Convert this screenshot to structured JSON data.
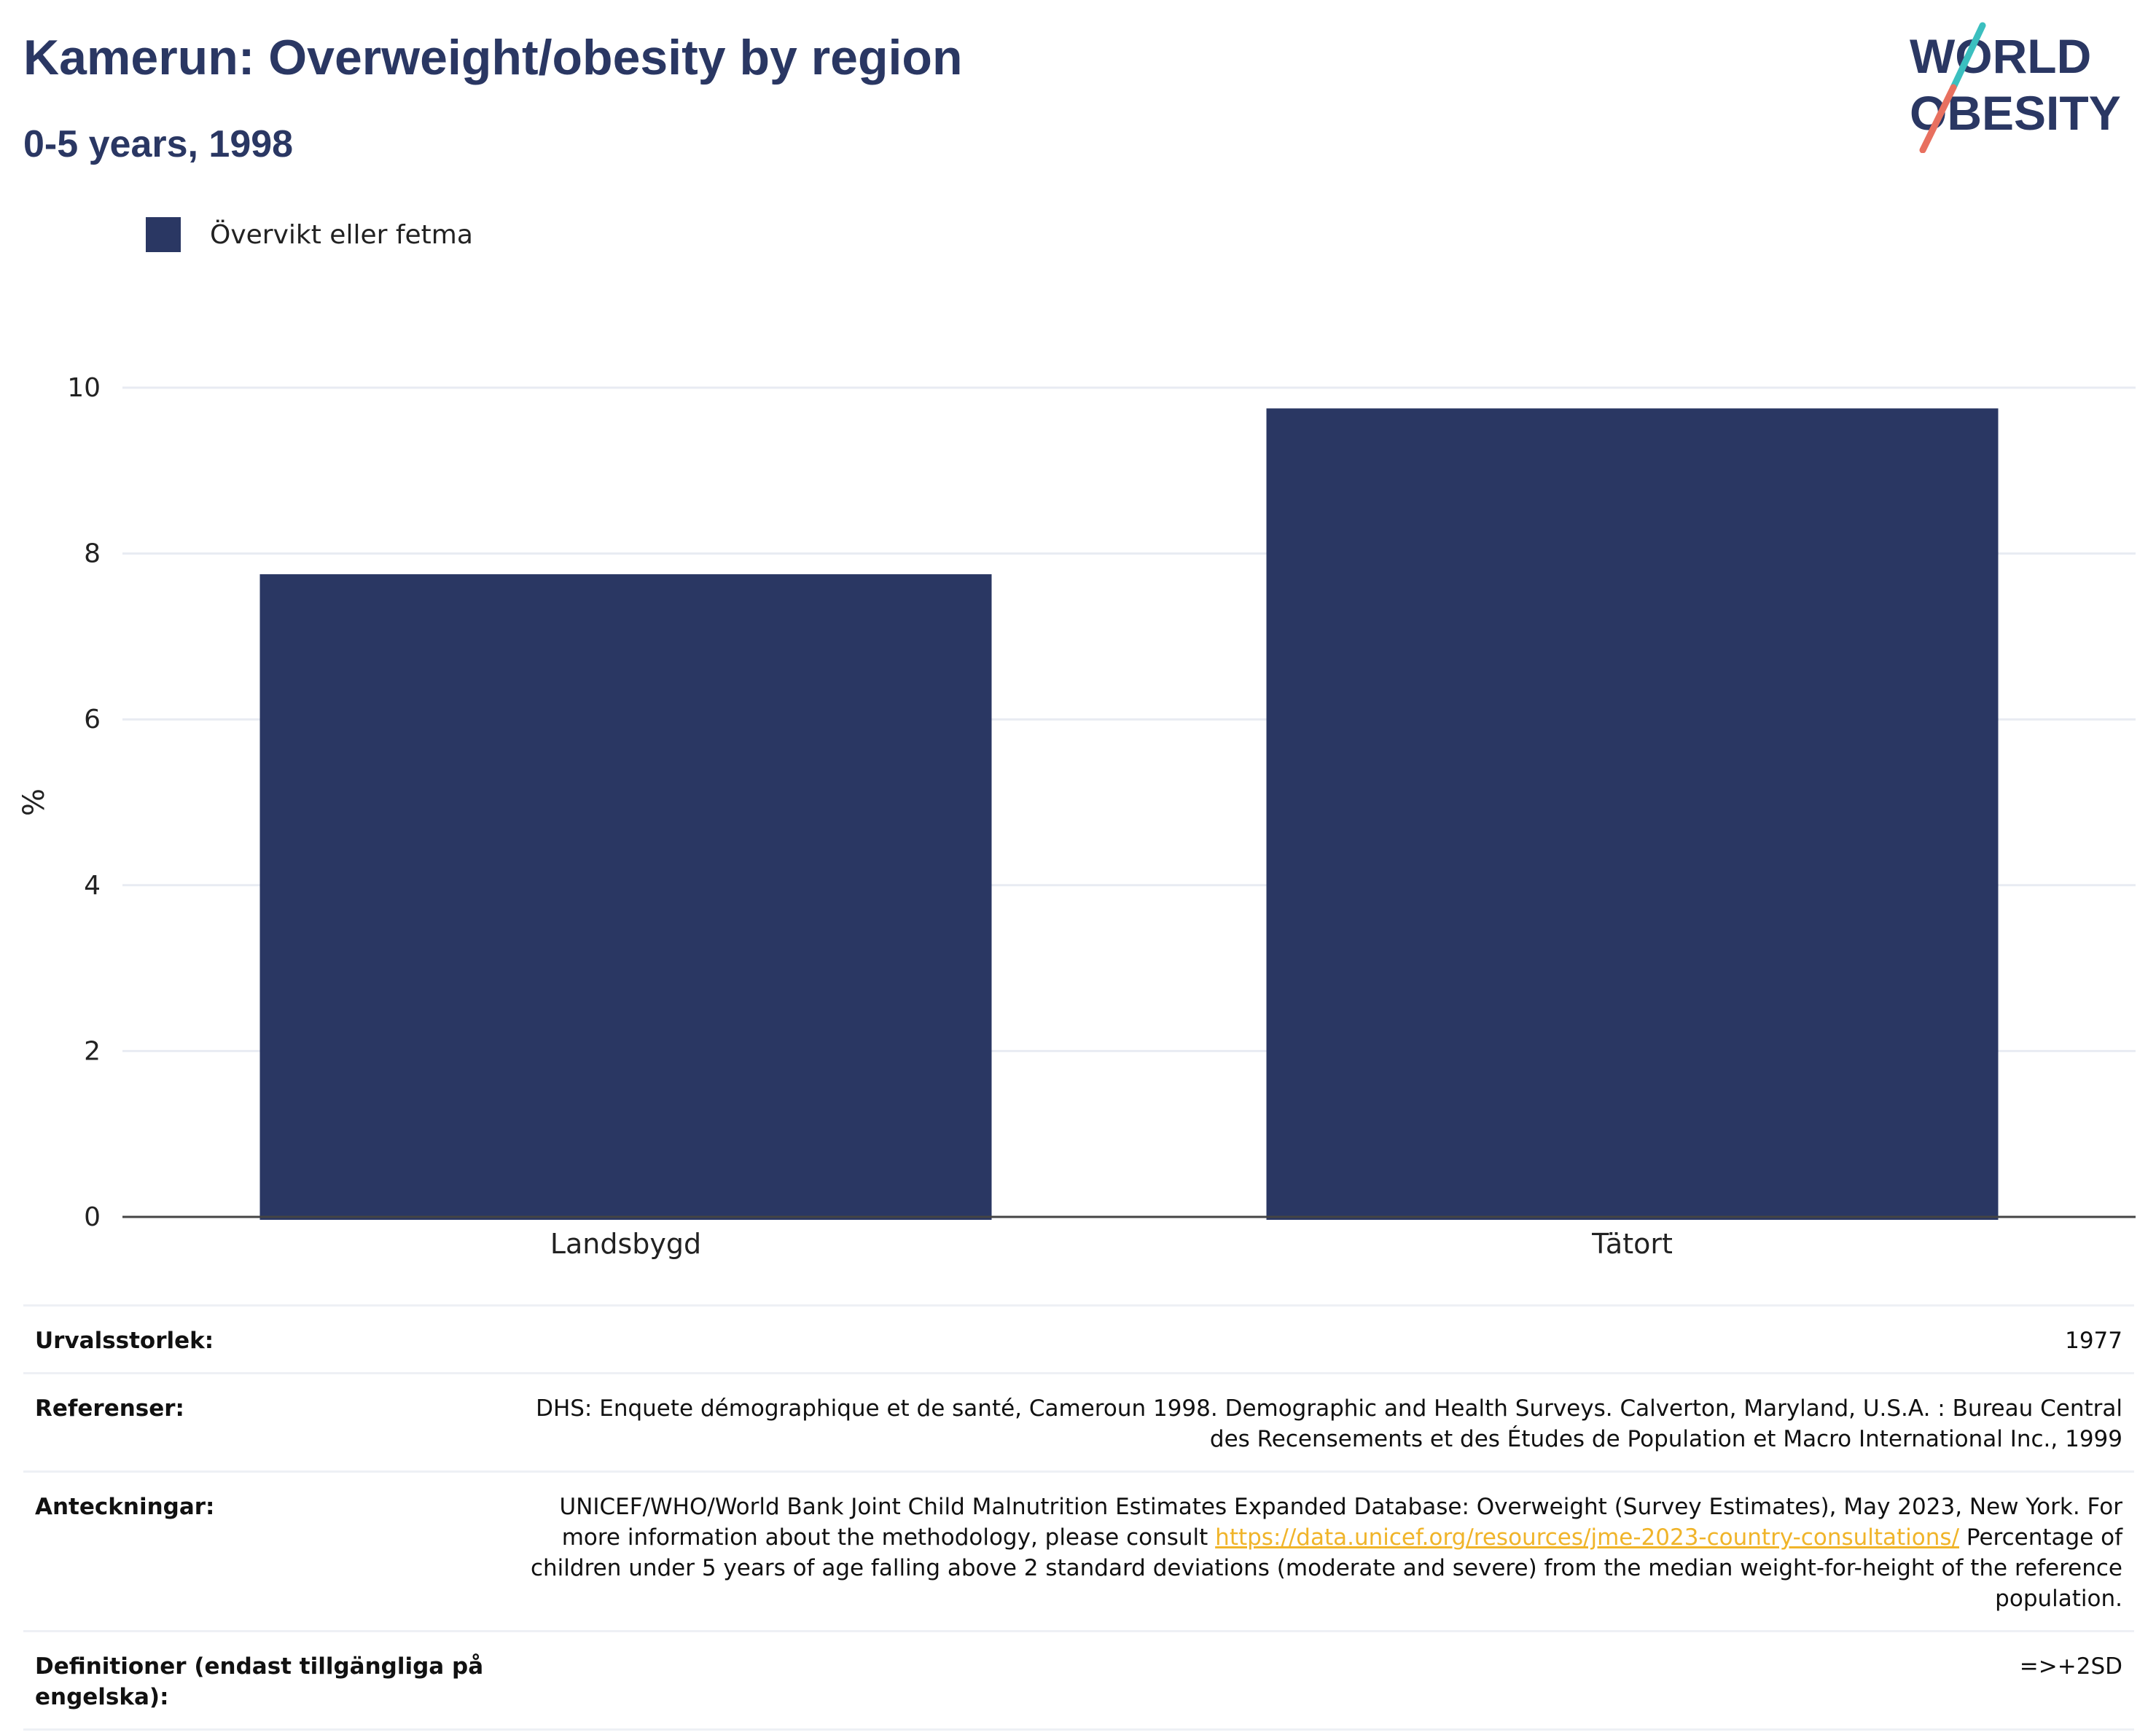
{
  "header": {
    "title": "Kamerun: Overweight/obesity by region",
    "subtitle": "0-5 years, 1998"
  },
  "logo": {
    "line1": "WORLD",
    "line2": "OBESITY",
    "colors": {
      "text": "#2a3763",
      "slash_top": "#3bbfbf",
      "slash_bottom": "#e8705f"
    }
  },
  "colors": {
    "bar": "#2a3763",
    "grid": "#e8ebf2",
    "axis": "#444444"
  },
  "chart_data": {
    "type": "bar",
    "categories": [
      "Landsbygd",
      "Tätort"
    ],
    "series": [
      {
        "name": "Övervikt eller fetma",
        "values": [
          7.75,
          9.75
        ],
        "color": "#2a3763"
      }
    ],
    "ylabel": "%",
    "xlabel": "",
    "ylim": [
      0,
      10
    ],
    "yticks": [
      "0",
      "2",
      "4",
      "6",
      "8",
      "10"
    ],
    "grid": true,
    "legend_position": "top-left"
  },
  "metadata": {
    "sample_size_label": "Urvalsstorlek:",
    "sample_size": "1977",
    "references_label": "Referenser:",
    "references": "DHS: Enquete démographique et de santé, Cameroun 1998. Demographic and Health Surveys. Calverton, Maryland, U.S.A. : Bureau Central des Recensements et des Études de Population et Macro International Inc., 1999",
    "notes_label": "Anteckningar:",
    "notes_part1": "UNICEF/WHO/World Bank Joint Child Malnutrition Estimates Expanded Database: Overweight (Survey Estimates), May 2023, New York. For more information about the methodology, please consult ",
    "notes_link": "https://data.unicef.org/resources/jme-2023-country-consultations/",
    "notes_part2": " Percentage of children under 5 years of age falling above 2 standard deviations (moderate and severe) from the median weight-for-height of the reference population.",
    "definitions_label": "Definitioner (endast tillgängliga på engelska):",
    "definitions": "=>+2SD"
  }
}
